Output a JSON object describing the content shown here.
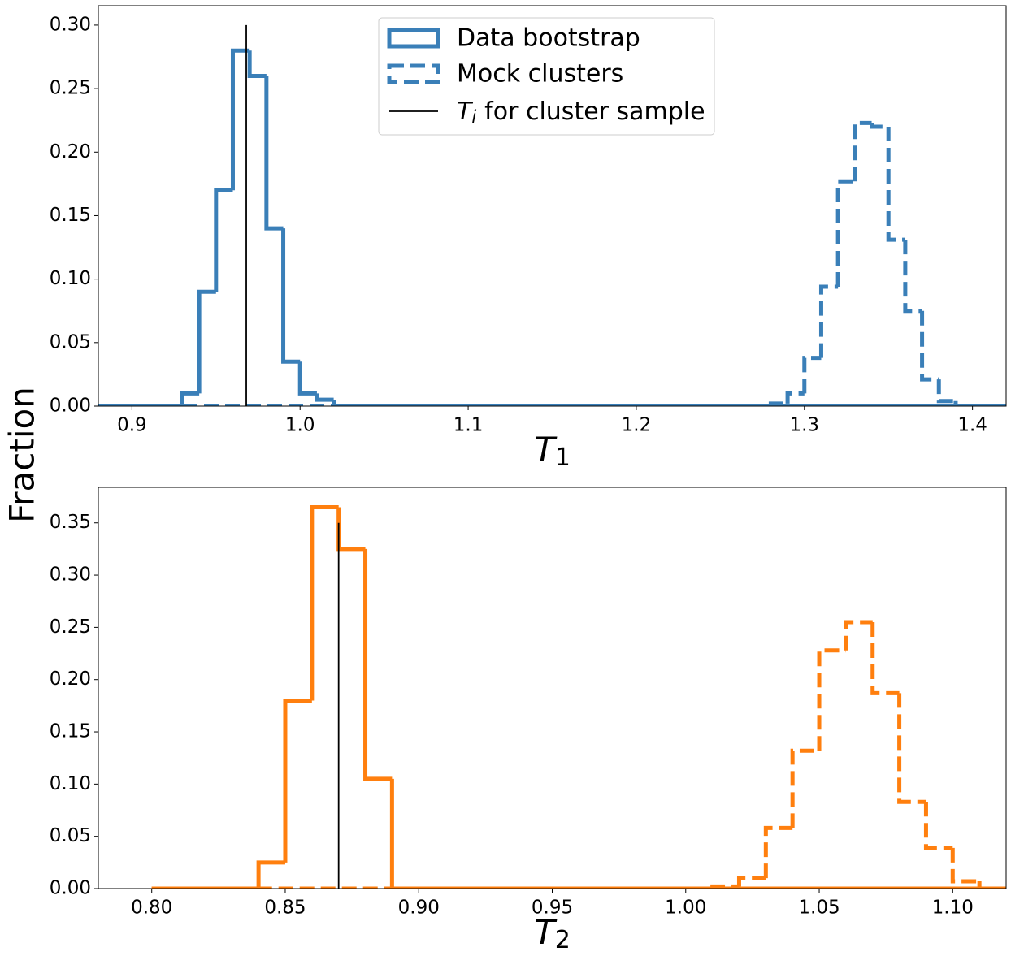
{
  "figure": {
    "ylabel": "Fraction"
  },
  "chart_data": [
    {
      "type": "histogram",
      "xlabel": {
        "symbol": "T",
        "subscript": "1"
      },
      "xlim": [
        0.88,
        1.42
      ],
      "ylim": [
        0,
        0.3153
      ],
      "xticks": [
        0.9,
        {
          "value": 1,
          "label": "1.0"
        },
        1.1,
        1.2,
        1.3,
        1.4
      ],
      "yticks": [
        {
          "value": 0,
          "label": "0.00"
        },
        0.05,
        {
          "value": 0.1,
          "label": "0.10"
        },
        0.15,
        {
          "value": 0.2,
          "label": "0.20"
        },
        0.25,
        {
          "value": 0.3,
          "label": "0.30"
        }
      ],
      "legend": "upper center",
      "series": [
        {
          "name": "Data bootstrap",
          "color": "#3a7fb8",
          "style": "solid",
          "bins": [
            0.88,
            0.93,
            0.94,
            0.95,
            0.96,
            0.97,
            0.98,
            0.99,
            1.0,
            1.01,
            1.02,
            1.42
          ],
          "values": [
            0,
            0.01,
            0.09,
            0.17,
            0.28,
            0.26,
            0.14,
            0.035,
            0.01,
            0.005,
            0
          ]
        },
        {
          "name": "Mock clusters",
          "color": "#3a7fb8",
          "style": "dashed",
          "bins": [
            0.88,
            1.28,
            1.29,
            1.3,
            1.31,
            1.32,
            1.33,
            1.34,
            1.35,
            1.36,
            1.37,
            1.38,
            1.39,
            1.42
          ],
          "values": [
            0,
            0.002,
            0.01,
            0.038,
            0.094,
            0.177,
            0.223,
            0.22,
            0.131,
            0.075,
            0.021,
            0.004,
            0
          ]
        }
      ],
      "vline": {
        "label_parts": [
          "T",
          "i",
          "for cluster sample"
        ],
        "x": 0.968,
        "y": [
          0,
          0.3
        ],
        "color": "#000000"
      }
    },
    {
      "type": "histogram",
      "xlabel": {
        "symbol": "T",
        "subscript": "2"
      },
      "xlim": [
        0.78,
        1.12
      ],
      "ylim": [
        0,
        0.384
      ],
      "xticks": [
        {
          "value": 0.8,
          "label": "0.80"
        },
        0.85,
        {
          "value": 0.9,
          "label": "0.90"
        },
        0.95,
        {
          "value": 1,
          "label": "1.00"
        },
        1.05,
        {
          "value": 1.1,
          "label": "1.10"
        }
      ],
      "yticks": [
        {
          "value": 0,
          "label": "0.00"
        },
        0.05,
        {
          "value": 0.1,
          "label": "0.10"
        },
        0.15,
        {
          "value": 0.2,
          "label": "0.20"
        },
        0.25,
        {
          "value": 0.3,
          "label": "0.30"
        },
        0.35
      ],
      "series": [
        {
          "color": "#ff7f0e",
          "style": "solid",
          "bins": [
            0.8,
            0.84,
            0.85,
            0.86,
            0.87,
            0.88,
            0.89,
            1.12
          ],
          "values": [
            0,
            0.025,
            0.18,
            0.365,
            0.325,
            0.105,
            0
          ]
        },
        {
          "color": "#ff7f0e",
          "style": "dashed",
          "bins": [
            0.8,
            1.01,
            1.02,
            1.03,
            1.04,
            1.05,
            1.06,
            1.07,
            1.08,
            1.09,
            1.1,
            1.11,
            1.12
          ],
          "values": [
            0,
            0.002,
            0.01,
            0.058,
            0.132,
            0.228,
            0.255,
            0.187,
            0.083,
            0.039,
            0.007,
            0
          ]
        }
      ],
      "vline": {
        "x": 0.87,
        "y": [
          0,
          0.35
        ],
        "color": "#000000"
      }
    }
  ]
}
